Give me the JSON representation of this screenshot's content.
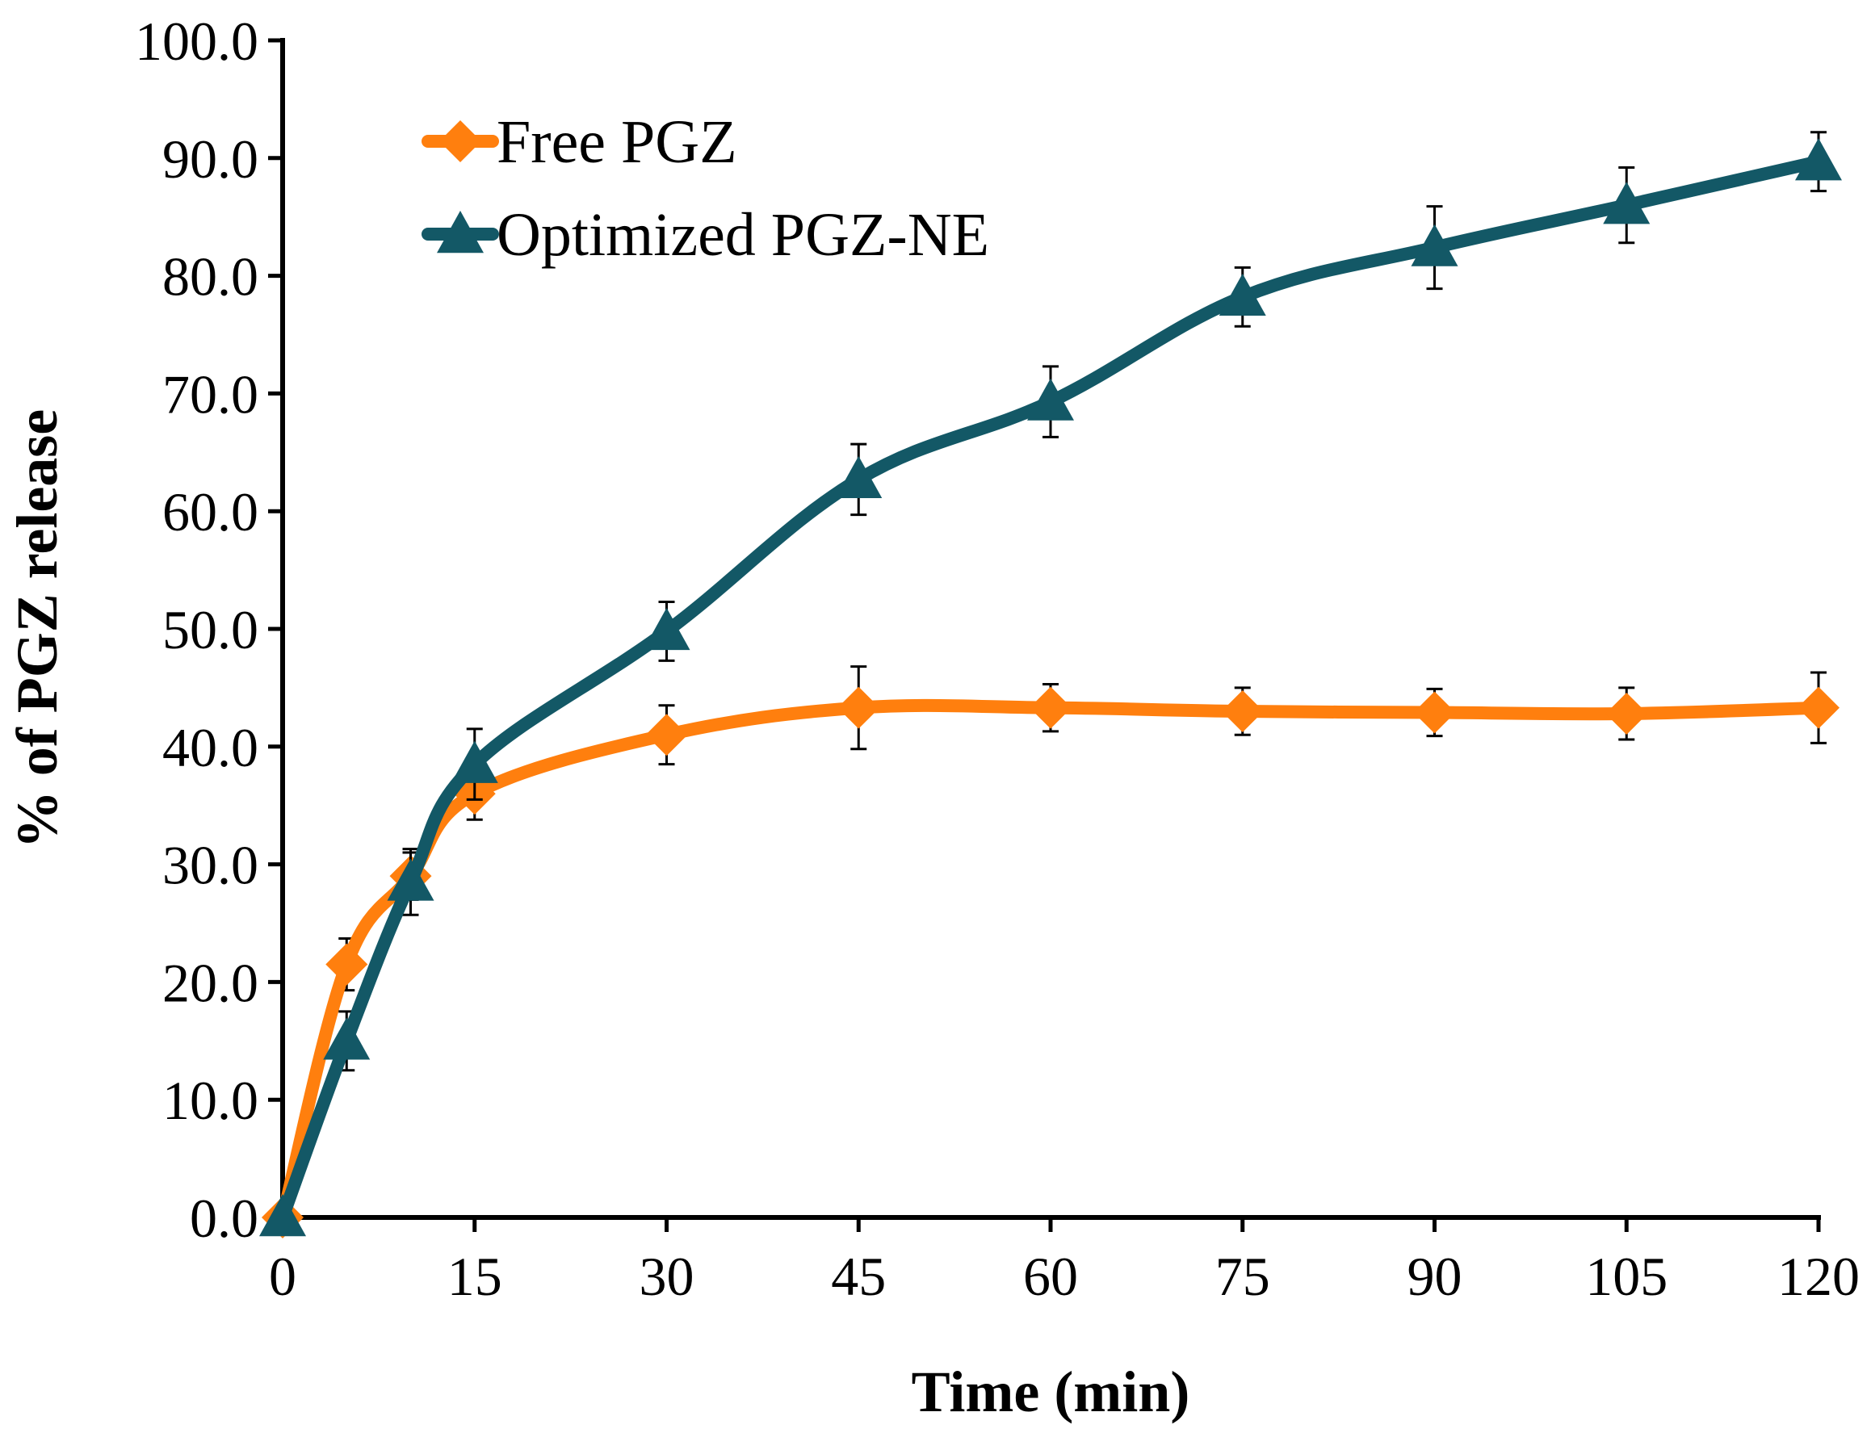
{
  "chart_data": {
    "type": "line",
    "title": "",
    "xlabel": "Time (min)",
    "ylabel": "% of PGZ release",
    "xlim": [
      0,
      120
    ],
    "ylim": [
      0,
      100
    ],
    "xticks": [
      0,
      15,
      30,
      45,
      60,
      75,
      90,
      105,
      120
    ],
    "xtick_labels": [
      "0",
      "15",
      "30",
      "45",
      "60",
      "75",
      "90",
      "105",
      "120"
    ],
    "yticks": [
      0,
      10,
      20,
      30,
      40,
      50,
      60,
      70,
      80,
      90,
      100
    ],
    "ytick_labels": [
      "0.0",
      "10.0",
      "20.0",
      "30.0",
      "40.0",
      "50.0",
      "60.0",
      "70.0",
      "80.0",
      "90.0",
      "100.0"
    ],
    "grid": false,
    "legend_position": "top-left",
    "series": [
      {
        "name": "Free PGZ",
        "color": "#FF7F0E",
        "marker": "diamond",
        "x": [
          0,
          5,
          10,
          15,
          30,
          45,
          60,
          75,
          90,
          105,
          120
        ],
        "y": [
          0,
          21.5,
          29,
          36,
          41,
          43.3,
          43.3,
          43,
          42.9,
          42.8,
          43.3
        ],
        "error": [
          0,
          2.2,
          2.0,
          2.2,
          2.5,
          3.5,
          2.0,
          2.0,
          2.0,
          2.2,
          3.0
        ]
      },
      {
        "name": "Optimized PGZ-NE",
        "color": "#135866",
        "marker": "triangle",
        "x": [
          0,
          5,
          10,
          15,
          30,
          45,
          60,
          75,
          90,
          105,
          120
        ],
        "y": [
          0,
          15,
          28.5,
          38.5,
          49.8,
          62.7,
          69.3,
          78.2,
          82.4,
          86,
          89.7
        ],
        "error": [
          0,
          2.5,
          2.8,
          3.0,
          2.5,
          3.0,
          3.0,
          2.5,
          3.5,
          3.2,
          2.5
        ]
      }
    ]
  }
}
